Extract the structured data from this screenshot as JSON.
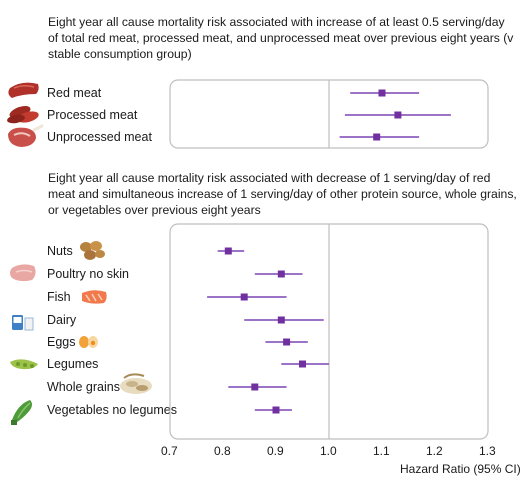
{
  "chart_data": [
    {
      "type": "scatter",
      "title": "Eight year all cause mortality risk associated with increase of at least 0.5 serving/day of total red meat, processed meat, and unprocessed meat over previous eight years (v stable consumption group)",
      "categories": [
        "Red meat",
        "Processed meat",
        "Unprocessed meat"
      ],
      "estimates": [
        1.1,
        1.13,
        1.09
      ],
      "ci_low": [
        1.04,
        1.03,
        1.02
      ],
      "ci_high": [
        1.17,
        1.23,
        1.17
      ],
      "xlim": [
        0.7,
        1.3
      ],
      "reference_line": 1.0,
      "icons": [
        "sausage-icon",
        "sausages-icon",
        "steak-icon"
      ]
    },
    {
      "type": "scatter",
      "title": "Eight year all cause mortality risk associated with decrease of 1 serving/day of red meat and simultaneous increase of 1 serving/day of other protein source, whole grains, or vegetables over previous eight years",
      "categories": [
        "Nuts",
        "Poultry no skin",
        "Fish",
        "Dairy",
        "Eggs",
        "Legumes",
        "Whole grains",
        "Vegetables no legumes"
      ],
      "estimates": [
        0.81,
        0.91,
        0.84,
        0.91,
        0.92,
        0.95,
        0.86,
        0.9
      ],
      "ci_low": [
        0.79,
        0.86,
        0.77,
        0.84,
        0.88,
        0.91,
        0.81,
        0.86
      ],
      "ci_high": [
        0.84,
        0.95,
        0.92,
        0.99,
        0.96,
        1.0,
        0.92,
        0.93
      ],
      "xlim": [
        0.7,
        1.3
      ],
      "reference_line": 1.0,
      "xticks": [
        "0.7",
        "0.8",
        "0.9",
        "1.0",
        "1.1",
        "1.2",
        "1.3"
      ],
      "xlabel": "Hazard Ratio (95% CI)",
      "icons": [
        "nuts-icon",
        "poultry-icon",
        "fish-icon",
        "dairy-icon",
        "eggs-icon",
        "legumes-icon",
        "whole-grains-icon",
        "vegetables-icon"
      ]
    }
  ],
  "colors": {
    "marker": "#7030a0",
    "ci_line": "#8f5fbf",
    "panel_border": "#bfbfbf",
    "reference": "#bfbfbf"
  }
}
